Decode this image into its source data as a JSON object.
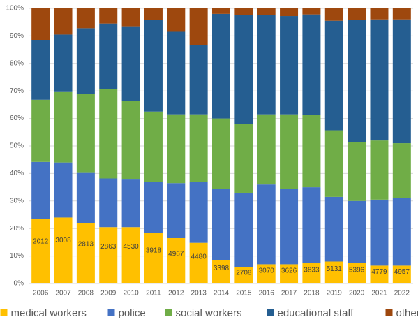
{
  "chart_data": {
    "type": "stacked_bar_100",
    "categories": [
      "2006",
      "2007",
      "2008",
      "2009",
      "2010",
      "2011",
      "2012",
      "2013",
      "2014",
      "2015",
      "2016",
      "2017",
      "2018",
      "2019",
      "2020",
      "2021",
      "2022"
    ],
    "series": [
      {
        "name": "medical workers",
        "color": "#ffc000",
        "values": [
          23.4,
          24,
          22,
          20.5,
          20.5,
          18.5,
          16.5,
          14.8,
          8.5,
          6,
          7,
          7,
          7.5,
          8,
          7.5,
          6.5,
          6.5
        ],
        "counts": [
          2012,
          3008,
          2813,
          2863,
          4530,
          3918,
          4967,
          4480,
          3398,
          2708,
          3070,
          3626,
          3833,
          5131,
          5396,
          4779,
          4957
        ]
      },
      {
        "name": "police",
        "color": "#4472c4",
        "values": [
          20.8,
          20,
          18.2,
          17.7,
          17.3,
          18.5,
          20,
          22.2,
          26,
          27,
          29,
          27.5,
          27.5,
          23.5,
          22.5,
          24,
          24.7
        ]
      },
      {
        "name": "social workers",
        "color": "#70ad47",
        "values": [
          22.6,
          25.6,
          28.6,
          32.6,
          28.7,
          25.5,
          25,
          24.5,
          25.5,
          25,
          25.5,
          27,
          26.3,
          24.2,
          21.5,
          21.5,
          19.8
        ]
      },
      {
        "name": "educational staff",
        "color": "#255e91",
        "values": [
          21.7,
          20.9,
          24,
          23.7,
          27,
          33.2,
          30,
          25.3,
          38,
          39.5,
          36,
          35.7,
          36.5,
          39.8,
          44.3,
          44,
          45
        ]
      },
      {
        "name": "other",
        "color": "#9e480e",
        "values": [
          11.5,
          9.5,
          7.2,
          5.5,
          6.5,
          4.3,
          8.5,
          13.2,
          2,
          2.5,
          2.5,
          2.8,
          2.2,
          4.5,
          4.2,
          4,
          4
        ]
      }
    ],
    "ylim": [
      0,
      100
    ],
    "yticks": [
      {
        "value": 0,
        "label": "0%"
      },
      {
        "value": 10,
        "label": "10%"
      },
      {
        "value": 20,
        "label": "20%"
      },
      {
        "value": 30,
        "label": "30%"
      },
      {
        "value": 40,
        "label": "40%"
      },
      {
        "value": 50,
        "label": "50%"
      },
      {
        "value": 60,
        "label": "60%"
      },
      {
        "value": 70,
        "label": "70%"
      },
      {
        "value": 80,
        "label": "80%"
      },
      {
        "value": 90,
        "label": "90%"
      },
      {
        "value": 100,
        "label": "100%"
      }
    ],
    "grid": true,
    "legend": "bottom"
  }
}
